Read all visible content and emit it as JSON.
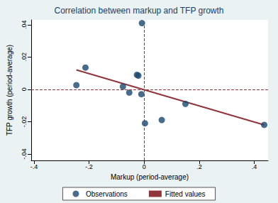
{
  "chart_data": {
    "type": "scatter",
    "title": "Correlation between markup and TFP growth",
    "x_label": "Markup (period-average)",
    "y_label": "TFP growth (period-average)",
    "xlim": [
      -0.41,
      0.45
    ],
    "ylim": [
      -0.044,
      0.043
    ],
    "xticks": [
      {
        "value": -0.4,
        "label": "-.4"
      },
      {
        "value": -0.2,
        "label": "-.2"
      },
      0,
      {
        "value": 0.2,
        "label": ".2"
      },
      {
        "value": 0.4,
        "label": ".4"
      }
    ],
    "yticks": [
      {
        "value": -0.04,
        "label": "-.04"
      },
      {
        "value": -0.02,
        "label": "-.02"
      },
      0,
      {
        "value": 0.02,
        "label": ".02"
      },
      {
        "value": 0.04,
        "label": ".04"
      }
    ],
    "hlines": [
      0
    ],
    "vlines": [
      0
    ],
    "grid": false,
    "legend": "bottom",
    "series": [
      {
        "name": "Observations",
        "type": "scatter",
        "marker": "circle",
        "color": "#1a476f",
        "x": [
          -0.246,
          -0.213,
          -0.077,
          -0.054,
          -0.026,
          -0.021,
          -0.01,
          -0.008,
          0.003,
          0.064,
          0.15,
          0.436
        ],
        "values": [
          0.0026,
          0.0135,
          0.0017,
          -0.002,
          0.009,
          0.0085,
          -0.003,
          0.041,
          -0.021,
          -0.019,
          -0.009,
          -0.022
        ]
      },
      {
        "name": "Fitted values",
        "type": "line",
        "line_style": "solid",
        "color": "#90353b",
        "x": [
          -0.246,
          0.436
        ],
        "values": [
          0.012,
          -0.022
        ]
      }
    ]
  }
}
